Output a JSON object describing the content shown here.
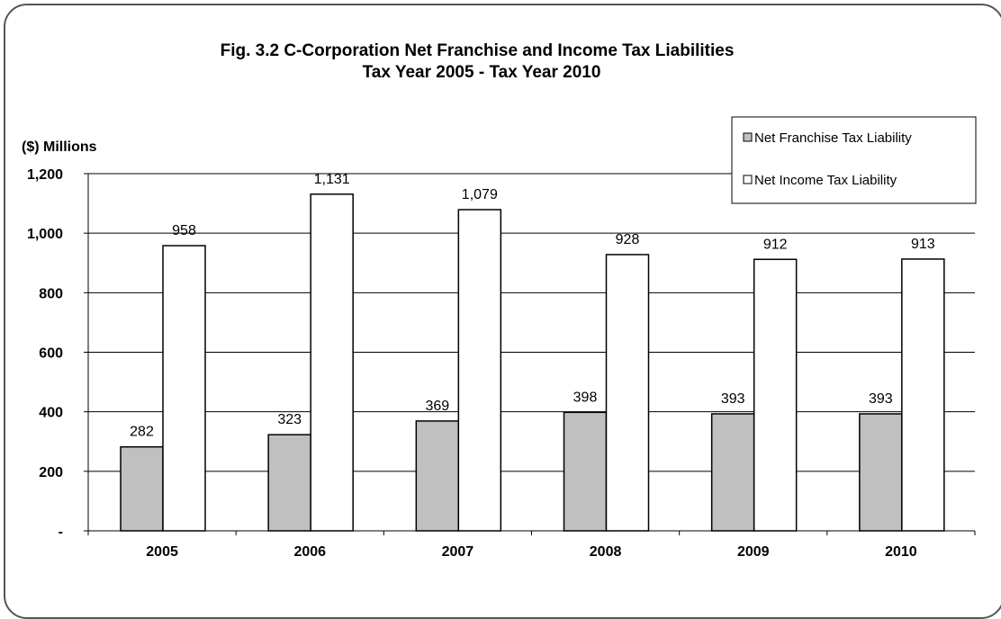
{
  "chart_data": {
    "type": "bar",
    "title": "Fig. 3.2  C-Corporation Net Franchise and Income Tax Liabilities",
    "subtitle": "Tax Year 2005 - Tax Year 2010",
    "ylabel": "($) Millions",
    "xlabel": "",
    "categories": [
      "2005",
      "2006",
      "2007",
      "2008",
      "2009",
      "2010"
    ],
    "ylim": [
      0,
      1200
    ],
    "yticks": [
      0,
      200,
      400,
      600,
      800,
      1000,
      1200
    ],
    "ytick_labels": [
      "-",
      "200",
      "400",
      "600",
      "800",
      "1,000",
      "1,200"
    ],
    "grid": true,
    "legend_position": "top-right",
    "series": [
      {
        "name": "Net Franchise  Tax Liability",
        "color": "#c0c0c0",
        "values": [
          282,
          323,
          369,
          398,
          393,
          393
        ],
        "labels": [
          "282",
          "323",
          "369",
          "398",
          "393",
          "393"
        ]
      },
      {
        "name": "Net Income  Tax Liability",
        "color": "#ffffff",
        "values": [
          958,
          1131,
          1079,
          928,
          912,
          913
        ],
        "labels": [
          "958",
          "1,131",
          "1,079",
          "928",
          "912",
          "913"
        ]
      }
    ]
  }
}
